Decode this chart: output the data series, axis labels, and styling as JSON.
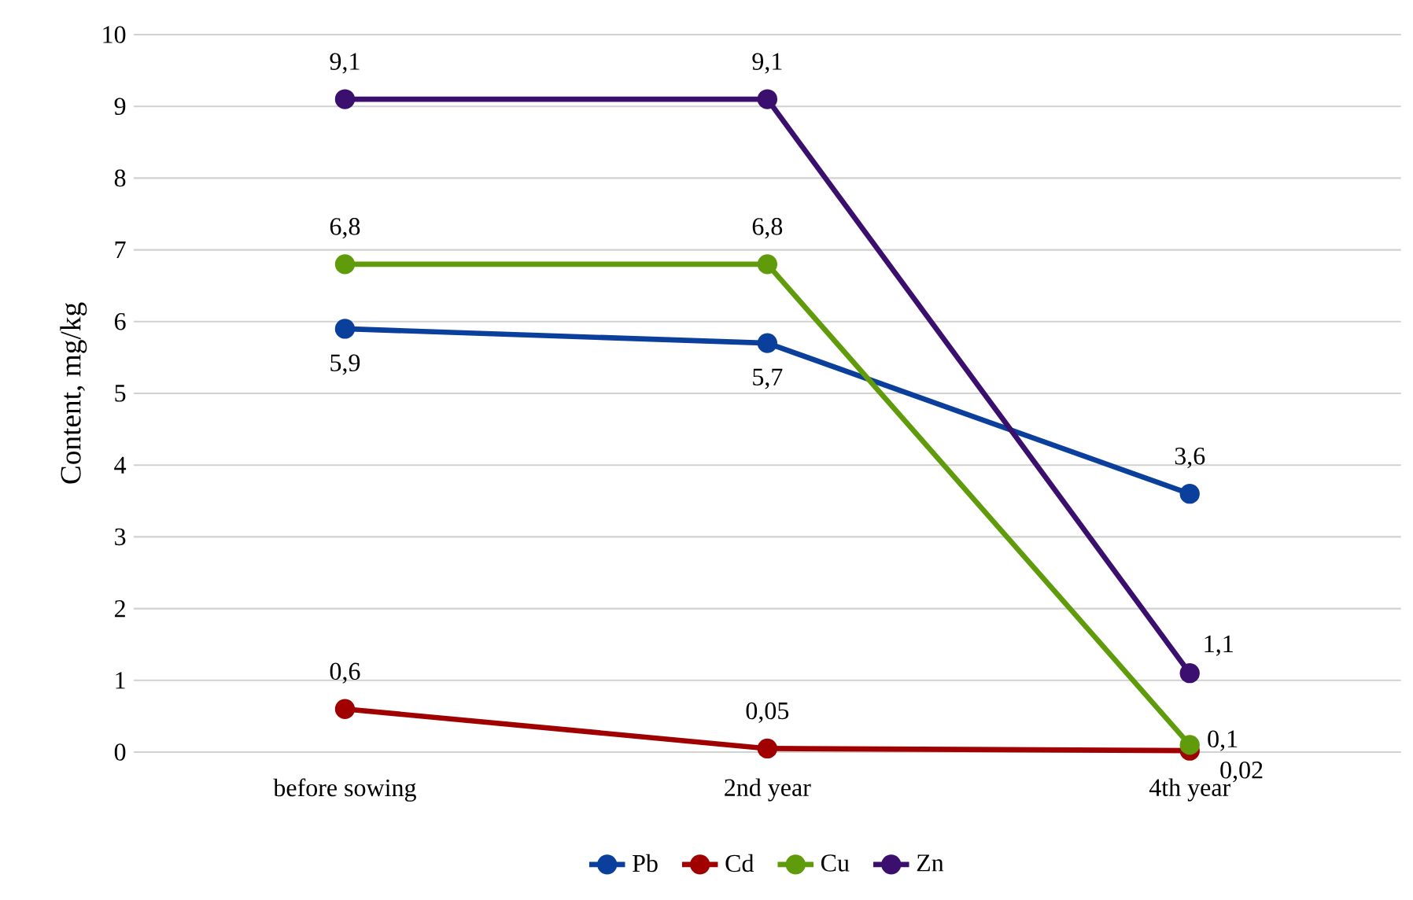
{
  "chart_data": {
    "type": "line",
    "ylabel": "Content, mg/kg",
    "categories": [
      "before sowing",
      "2nd year",
      "4th year"
    ],
    "series": [
      {
        "name": "Pb",
        "color": "#0b3f9c",
        "values": [
          5.9,
          5.7,
          3.6
        ],
        "value_labels": [
          "5,9",
          "5,7",
          "3,6"
        ]
      },
      {
        "name": "Cd",
        "color": "#a00000",
        "values": [
          0.6,
          0.05,
          0.02
        ],
        "value_labels": [
          "0,6",
          "0,05",
          "0,02"
        ]
      },
      {
        "name": "Cu",
        "color": "#5f9b0a",
        "values": [
          6.8,
          6.8,
          0.1
        ],
        "value_labels": [
          "6,8",
          "6,8",
          "0,1"
        ]
      },
      {
        "name": "Zn",
        "color": "#3b0f6e",
        "values": [
          9.1,
          9.1,
          1.1
        ],
        "value_labels": [
          "9,1",
          "9,1",
          "1,1"
        ]
      }
    ],
    "ylim": [
      0,
      10
    ],
    "yticks": [
      0,
      1,
      2,
      3,
      4,
      5,
      6,
      7,
      8,
      9,
      10
    ],
    "grid": "y",
    "legend": "bottom",
    "marker": "circle",
    "line_style": "solid"
  }
}
